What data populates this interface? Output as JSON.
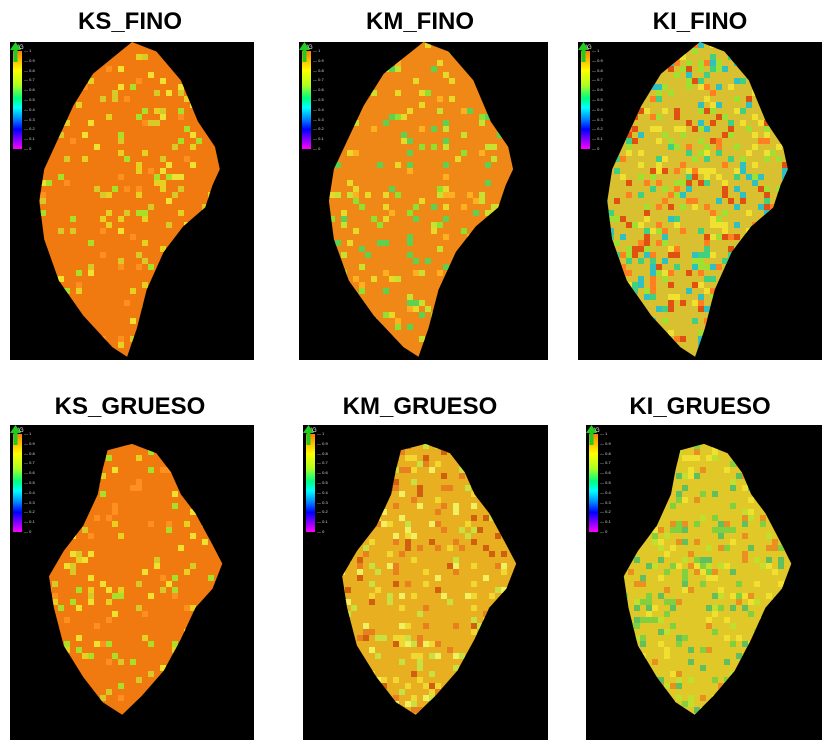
{
  "panels": [
    {
      "title": "KS_FINO"
    },
    {
      "title": "KM_FINO"
    },
    {
      "title": "KI_FINO"
    },
    {
      "title": "KS_GRUESO"
    },
    {
      "title": "KM_GRUESO"
    },
    {
      "title": "KI_GRUESO"
    }
  ],
  "legend": {
    "title": "N/G",
    "ticks": [
      "1",
      "0.9",
      "0.8",
      "0.7",
      "0.6",
      "0.5",
      "0.4",
      "0.3",
      "0.2",
      "0.1",
      "0"
    ]
  },
  "colors": {
    "background": "#000000",
    "high": "#ff8000",
    "mid": "#ffff00",
    "low": "#ff00ff",
    "arrow": "#22cc22"
  },
  "icons": {
    "north": "north-arrow-icon"
  }
}
